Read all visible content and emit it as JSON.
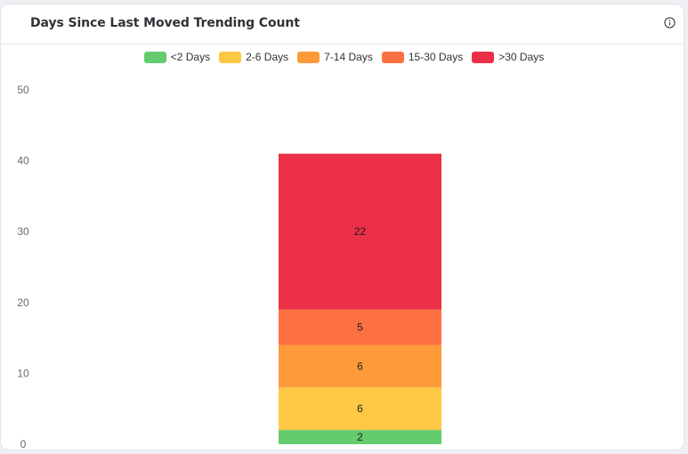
{
  "card": {
    "title": "Days Since Last Moved Trending Count",
    "info_icon": "info-circle-icon"
  },
  "colors": {
    "lt2": "#64cc6f",
    "d2_6": "#fdc945",
    "d7_14": "#fd9b3a",
    "d15_30": "#fd7041",
    "gt30": "#ec3047"
  },
  "chart_data": {
    "type": "bar",
    "stacked": true,
    "categories": [
      ""
    ],
    "series": [
      {
        "name": "<2 Days",
        "values": [
          2
        ],
        "color": "#64cc6f"
      },
      {
        "name": "2-6 Days",
        "values": [
          6
        ],
        "color": "#fdc945"
      },
      {
        "name": "7-14 Days",
        "values": [
          6
        ],
        "color": "#fd9b3a"
      },
      {
        "name": "15-30 Days",
        "values": [
          5
        ],
        "color": "#fd7041"
      },
      {
        "name": ">30 Days",
        "values": [
          22
        ],
        "color": "#ec3047"
      }
    ],
    "ylim": [
      0,
      50
    ],
    "yticks": [
      "0",
      "10",
      "20",
      "30",
      "40",
      "50"
    ],
    "grid": false,
    "legend_position": "top-center",
    "data_labels": true
  }
}
